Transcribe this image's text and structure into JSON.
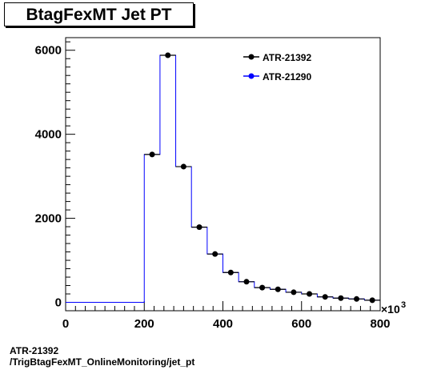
{
  "chart_data": {
    "type": "histogram",
    "title": "BtagFexMT Jet PT",
    "xlabel": "",
    "ylabel": "",
    "x_multiplier": "×10",
    "x_multiplier_exp": "3",
    "xlim": [
      0,
      800
    ],
    "ylim": [
      -200,
      6300
    ],
    "x_ticks": [
      0,
      200,
      400,
      600,
      800
    ],
    "y_ticks": [
      0,
      2000,
      4000,
      6000
    ],
    "bin_edges": [
      0,
      40,
      80,
      120,
      160,
      200,
      240,
      280,
      320,
      360,
      400,
      440,
      480,
      520,
      560,
      600,
      640,
      680,
      720,
      760,
      800
    ],
    "series": [
      {
        "name": "ATR-21392",
        "color": "#000000",
        "style": "markers",
        "values": [
          0,
          0,
          0,
          0,
          0,
          3520,
          5880,
          3230,
          1790,
          1150,
          710,
          490,
          350,
          310,
          240,
          200,
          130,
          100,
          80,
          50
        ]
      },
      {
        "name": "ATR-21290",
        "color": "#0000ff",
        "style": "line",
        "values": [
          0,
          0,
          0,
          0,
          0,
          3520,
          5880,
          3230,
          1790,
          1150,
          710,
          490,
          350,
          310,
          240,
          200,
          130,
          100,
          80,
          50
        ]
      }
    ],
    "legend_position": "top-right"
  },
  "footer": {
    "line1": "ATR-21392",
    "line2": "/TrigBtagFexMT_OnlineMonitoring/jet_pt"
  }
}
